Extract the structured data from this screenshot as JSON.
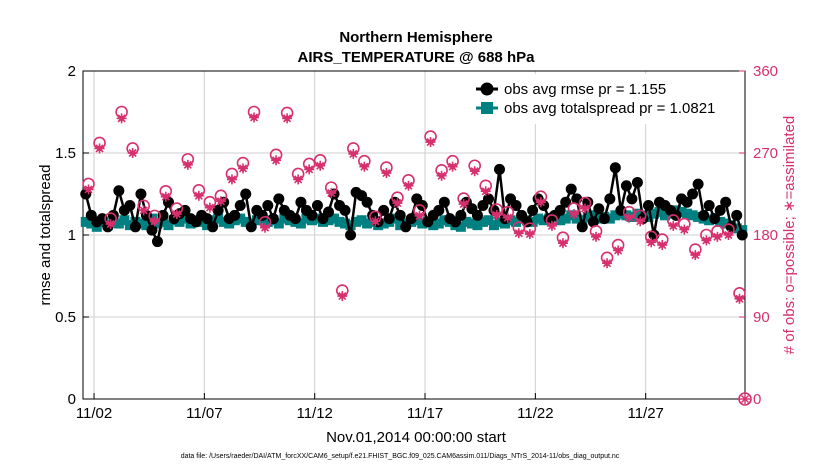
{
  "chart_data": {
    "type": "scatter",
    "title": "Northern Hemisphere",
    "subtitle": "AIRS_TEMPERATURE @ 688 hPa",
    "xlabel": "Nov.01,2014 00:00:00 start",
    "ylabel_left": "rmse and totalspread",
    "ylabel_right": "# of obs: o=possible; ∗=assimilated",
    "x_ticks": [
      "11/02",
      "11/07",
      "11/12",
      "11/17",
      "11/22",
      "11/27"
    ],
    "x_tick_days": [
      2,
      7,
      12,
      17,
      22,
      27
    ],
    "xlim": [
      1.5,
      31.5
    ],
    "ylim_left": [
      0,
      2
    ],
    "y_ticks_left": [
      "0",
      "0.5",
      "1",
      "1.5",
      "2"
    ],
    "ylim_right": [
      0,
      360
    ],
    "y_ticks_right": [
      "0",
      "90",
      "180",
      "270",
      "360"
    ],
    "grid": true,
    "legend_position": "top-right",
    "colors": {
      "rmse": "#000000",
      "spread": "#008080",
      "counts": "#d6306e",
      "grid": "#cfcfcf"
    },
    "legend": [
      {
        "label": "obs avg rmse pr = 1.155",
        "series": "rmse"
      },
      {
        "label": "obs avg totalspread pr = 1.0821",
        "series": "spread"
      }
    ],
    "footnote": "data file: /Users/raeder/DAI/ATM_forcXX/CAM6_setup/f.e21.FHIST_BGC.f09_025.CAM6assim.011/Diags_NTrS_2014-11/obs_diag_output.nc",
    "rmse_t": [
      1.625,
      1.875,
      2.125,
      2.375,
      2.625,
      2.875,
      3.125,
      3.375,
      3.625,
      3.875,
      4.125,
      4.375,
      4.625,
      4.875,
      5.125,
      5.375,
      5.625,
      5.875,
      6.125,
      6.375,
      6.625,
      6.875,
      7.125,
      7.375,
      7.625,
      7.875,
      8.125,
      8.375,
      8.625,
      8.875,
      9.125,
      9.375,
      9.625,
      9.875,
      10.125,
      10.375,
      10.625,
      10.875,
      11.125,
      11.375,
      11.625,
      11.875,
      12.125,
      12.375,
      12.625,
      12.875,
      13.125,
      13.375,
      13.625,
      13.875,
      14.125,
      14.375,
      14.625,
      14.875,
      15.125,
      15.375,
      15.625,
      15.875,
      16.125,
      16.375,
      16.625,
      16.875,
      17.125,
      17.375,
      17.625,
      17.875,
      18.125,
      18.375,
      18.625,
      18.875,
      19.125,
      19.375,
      19.625,
      19.875,
      20.125,
      20.375,
      20.625,
      20.875,
      21.125,
      21.375,
      21.625,
      21.875,
      22.125,
      22.375,
      22.625,
      22.875,
      23.125,
      23.375,
      23.625,
      23.875,
      24.125,
      24.375,
      24.625,
      24.875,
      25.125,
      25.375,
      25.625,
      25.875,
      26.125,
      26.375,
      26.625,
      26.875,
      27.125,
      27.375,
      27.625,
      27.875,
      28.125,
      28.375,
      28.625,
      28.875,
      29.125,
      29.375,
      29.625,
      29.875,
      30.125,
      30.375,
      30.625,
      30.875,
      31.125,
      31.375
    ],
    "rmse": [
      1.25,
      1.12,
      1.08,
      1.1,
      1.05,
      1.12,
      1.27,
      1.15,
      1.18,
      1.05,
      1.25,
      1.12,
      1.03,
      0.96,
      1.12,
      1.2,
      1.1,
      1.13,
      1.15,
      1.1,
      1.08,
      1.12,
      1.1,
      1.05,
      1.15,
      1.2,
      1.1,
      1.12,
      1.18,
      1.25,
      1.05,
      1.15,
      1.12,
      1.18,
      1.1,
      1.22,
      1.15,
      1.12,
      1.1,
      1.2,
      1.15,
      1.12,
      1.18,
      1.1,
      1.14,
      1.25,
      1.18,
      1.15,
      1.0,
      1.26,
      1.24,
      1.2,
      1.12,
      1.08,
      1.15,
      1.1,
      1.2,
      1.12,
      1.05,
      1.1,
      1.22,
      1.18,
      1.08,
      1.12,
      1.15,
      1.2,
      1.1,
      1.08,
      1.12,
      1.2,
      1.16,
      1.12,
      1.18,
      1.22,
      1.15,
      1.4,
      1.1,
      1.22,
      1.18,
      1.12,
      1.08,
      1.15,
      1.22,
      1.18,
      1.1,
      1.12,
      1.15,
      1.2,
      1.28,
      1.22,
      1.05,
      1.2,
      1.08,
      1.16,
      1.1,
      1.22,
      1.41,
      1.15,
      1.3,
      1.22,
      1.32,
      1.1,
      1.18,
      1.0,
      1.2,
      1.18,
      1.15,
      1.12,
      1.22,
      1.2,
      1.25,
      1.31,
      1.12,
      1.18,
      1.1,
      1.15,
      1.2,
      1.05,
      1.12,
      1.0
    ],
    "spread_t": [
      1.625,
      1.875,
      2.125,
      2.375,
      2.625,
      2.875,
      3.125,
      3.375,
      3.625,
      3.875,
      4.125,
      4.375,
      4.625,
      4.875,
      5.125,
      5.375,
      5.625,
      5.875,
      6.125,
      6.375,
      6.625,
      6.875,
      7.125,
      7.375,
      7.625,
      7.875,
      8.125,
      8.375,
      8.625,
      8.875,
      9.125,
      9.375,
      9.625,
      9.875,
      10.125,
      10.375,
      10.625,
      10.875,
      11.125,
      11.375,
      11.625,
      11.875,
      12.125,
      12.375,
      12.625,
      12.875,
      13.125,
      13.375,
      13.625,
      13.875,
      14.125,
      14.375,
      14.625,
      14.875,
      15.125,
      15.375,
      15.625,
      15.875,
      16.125,
      16.375,
      16.625,
      16.875,
      17.125,
      17.375,
      17.625,
      17.875,
      18.125,
      18.375,
      18.625,
      18.875,
      19.125,
      19.375,
      19.625,
      19.875,
      20.125,
      20.375,
      20.625,
      20.875,
      21.125,
      21.375,
      21.625,
      21.875,
      22.125,
      22.375,
      22.625,
      22.875,
      23.125,
      23.375,
      23.625,
      23.875,
      24.125,
      24.375,
      24.625,
      24.875,
      25.125,
      25.375,
      25.625,
      25.875,
      26.125,
      26.375,
      26.625,
      26.875,
      27.125,
      27.375,
      27.625,
      27.875,
      28.125,
      28.375,
      28.625,
      28.875,
      29.125,
      29.375,
      29.625,
      29.875,
      30.125,
      30.375,
      30.625,
      30.875,
      31.125,
      31.375
    ],
    "spread": [
      1.08,
      1.07,
      1.05,
      1.08,
      1.06,
      1.08,
      1.07,
      1.09,
      1.06,
      1.08,
      1.07,
      1.06,
      1.1,
      1.07,
      1.08,
      1.06,
      1.09,
      1.08,
      1.1,
      1.07,
      1.09,
      1.08,
      1.06,
      1.09,
      1.1,
      1.08,
      1.07,
      1.09,
      1.1,
      1.08,
      1.07,
      1.09,
      1.1,
      1.08,
      1.09,
      1.07,
      1.1,
      1.09,
      1.08,
      1.07,
      1.1,
      1.09,
      1.1,
      1.08,
      1.09,
      1.1,
      1.08,
      1.07,
      1.06,
      1.08,
      1.09,
      1.07,
      1.08,
      1.06,
      1.07,
      1.08,
      1.1,
      1.06,
      1.07,
      1.08,
      1.09,
      1.07,
      1.08,
      1.06,
      1.07,
      1.09,
      1.08,
      1.06,
      1.05,
      1.08,
      1.07,
      1.06,
      1.08,
      1.09,
      1.06,
      1.08,
      1.07,
      1.09,
      1.08,
      1.1,
      1.09,
      1.08,
      1.1,
      1.09,
      1.1,
      1.11,
      1.09,
      1.1,
      1.12,
      1.1,
      1.09,
      1.11,
      1.12,
      1.1,
      1.11,
      1.1,
      1.12,
      1.13,
      1.12,
      1.11,
      1.13,
      1.12,
      1.11,
      1.13,
      1.14,
      1.12,
      1.13,
      1.15,
      1.14,
      1.13,
      1.12,
      1.11,
      1.1,
      1.09,
      1.1,
      1.08,
      1.07,
      1.06,
      1.04,
      1.03
    ],
    "obs_t": [
      1.75,
      2.25,
      2.75,
      3.25,
      3.75,
      4.25,
      4.75,
      5.25,
      5.75,
      6.25,
      6.75,
      7.25,
      7.75,
      8.25,
      8.75,
      9.25,
      9.75,
      10.25,
      10.75,
      11.25,
      11.75,
      12.25,
      12.75,
      13.25,
      13.75,
      14.25,
      14.75,
      15.25,
      15.75,
      16.25,
      16.75,
      17.25,
      17.75,
      18.25,
      18.75,
      19.25,
      19.75,
      20.25,
      20.75,
      21.25,
      21.75,
      22.25,
      22.75,
      23.25,
      23.75,
      24.25,
      24.75,
      25.25,
      25.75,
      26.25,
      26.75,
      27.25,
      27.75,
      28.25,
      28.75,
      29.25,
      29.75,
      30.25,
      30.75,
      31.25
    ],
    "obs_possible": [
      236,
      281,
      198,
      315,
      275,
      212,
      201,
      228,
      209,
      263,
      229,
      216,
      223,
      247,
      259,
      315,
      194,
      268,
      314,
      247,
      258,
      262,
      232,
      119,
      275,
      261,
      200,
      254,
      221,
      240,
      207,
      288,
      251,
      261,
      220,
      256,
      234,
      208,
      205,
      188,
      187,
      222,
      196,
      177,
      209,
      215,
      184,
      155,
      169,
      205,
      201,
      178,
      175,
      196,
      192,
      164,
      180,
      184,
      186,
      116
    ],
    "obs_assimilated": [
      230,
      275,
      192,
      308,
      270,
      207,
      195,
      222,
      203,
      257,
      223,
      210,
      217,
      241,
      253,
      309,
      188,
      262,
      308,
      241,
      252,
      256,
      226,
      113,
      269,
      255,
      195,
      248,
      215,
      234,
      201,
      282,
      245,
      255,
      214,
      250,
      228,
      202,
      199,
      182,
      181,
      216,
      190,
      171,
      203,
      209,
      178,
      149,
      163,
      199,
      195,
      172,
      169,
      190,
      186,
      158,
      174,
      178,
      180,
      110
    ]
  }
}
